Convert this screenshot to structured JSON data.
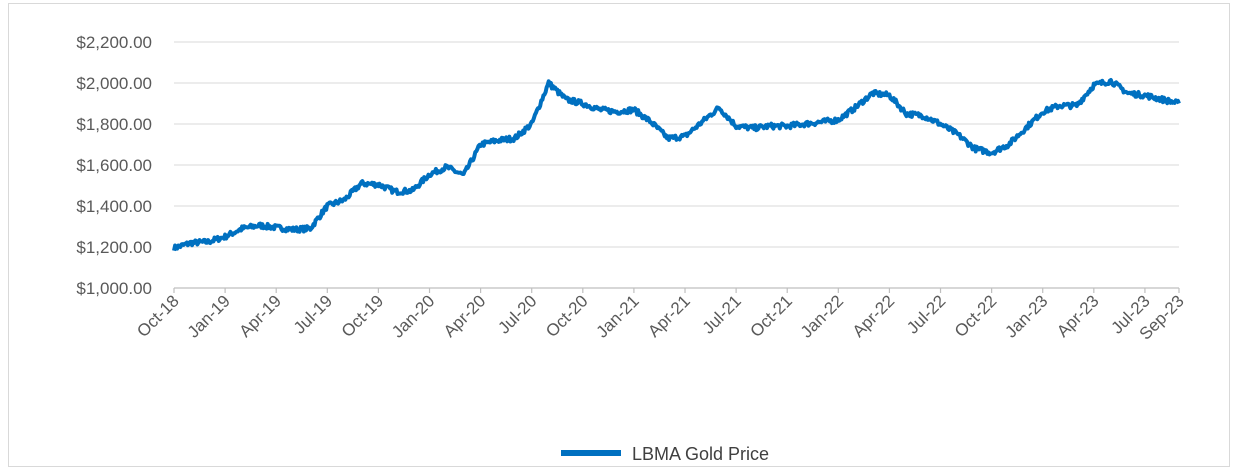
{
  "chart_data": {
    "type": "line",
    "title": "",
    "xlabel": "",
    "ylabel": "",
    "ylim": [
      1000,
      2200
    ],
    "y_ticks": [
      "$1,000.00",
      "$1,200.00",
      "$1,400.00",
      "$1,600.00",
      "$1,800.00",
      "$2,000.00",
      "$2,200.00"
    ],
    "y_tick_values": [
      1000,
      1200,
      1400,
      1600,
      1800,
      2000,
      2200
    ],
    "x_tick_labels": [
      "Oct-18",
      "Jan-19",
      "Apr-19",
      "Jul-19",
      "Oct-19",
      "Jan-20",
      "Apr-20",
      "Jul-20",
      "Oct-20",
      "Jan-21",
      "Apr-21",
      "Jul-21",
      "Oct-21",
      "Jan-22",
      "Apr-22",
      "Jul-22",
      "Oct-22",
      "Jan-23",
      "Apr-23",
      "Jul-23",
      "Sep-23"
    ],
    "grid": true,
    "legend_position": "bottom-center",
    "series": [
      {
        "name": "LBMA Gold Price",
        "color": "#0070c0",
        "x": [
          "Oct-18",
          "Nov-18",
          "Dec-18",
          "Jan-19",
          "Feb-19",
          "Mar-19",
          "Apr-19",
          "May-19",
          "Jun-19",
          "Jul-19",
          "Aug-19",
          "Sep-19",
          "Oct-19",
          "Nov-19",
          "Dec-19",
          "Jan-20",
          "Feb-20",
          "Mar-20",
          "Apr-20",
          "May-20",
          "Jun-20",
          "Jul-20",
          "Aug-20",
          "Sep-20",
          "Oct-20",
          "Nov-20",
          "Dec-20",
          "Jan-21",
          "Feb-21",
          "Mar-21",
          "Apr-21",
          "May-21",
          "Jun-21",
          "Jul-21",
          "Aug-21",
          "Sep-21",
          "Oct-21",
          "Nov-21",
          "Dec-21",
          "Jan-22",
          "Feb-22",
          "Mar-22",
          "Apr-22",
          "May-22",
          "Jun-22",
          "Jul-22",
          "Aug-22",
          "Sep-22",
          "Oct-22",
          "Nov-22",
          "Dec-22",
          "Jan-23",
          "Feb-23",
          "Mar-23",
          "Apr-23",
          "May-23",
          "Jun-23",
          "Jul-23",
          "Aug-23",
          "Sep-23"
        ],
        "values": [
          1195,
          1220,
          1225,
          1250,
          1290,
          1305,
          1295,
          1285,
          1290,
          1400,
          1430,
          1510,
          1505,
          1470,
          1475,
          1555,
          1590,
          1550,
          1700,
          1720,
          1730,
          1800,
          2000,
          1920,
          1900,
          1870,
          1860,
          1870,
          1810,
          1730,
          1740,
          1810,
          1880,
          1790,
          1780,
          1790,
          1790,
          1800,
          1810,
          1820,
          1880,
          1950,
          1940,
          1850,
          1840,
          1800,
          1750,
          1680,
          1660,
          1700,
          1780,
          1860,
          1890,
          1890,
          1990,
          2010,
          1950,
          1940,
          1920,
          1900
        ]
      }
    ]
  }
}
